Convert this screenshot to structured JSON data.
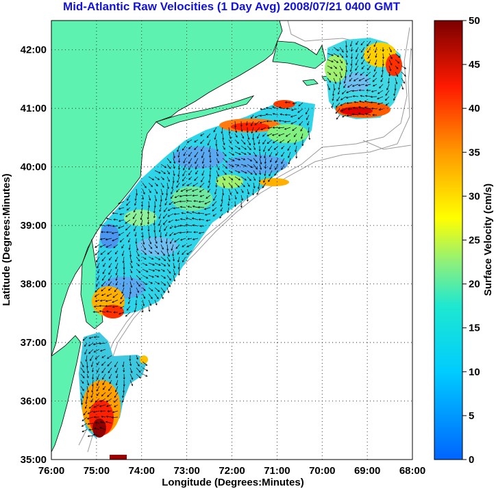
{
  "title": "Mid-Atlantic Raw Velocities (1 Day Avg) 2008/07/21 0400 GMT",
  "map": {
    "x_axis_label": "Longitude (Degrees:Minutes)",
    "y_axis_label": "Latitude (Degrees:Minutes)",
    "x_ticks": [
      "76:00",
      "75:00",
      "74:00",
      "73:00",
      "72:00",
      "71:00",
      "70:00",
      "69:00",
      "68:00"
    ],
    "y_ticks": [
      "42:00",
      "41:00",
      "40:00",
      "39:00",
      "38:00",
      "37:00",
      "36:00",
      "35:00"
    ],
    "lon_range": [
      -76,
      -68
    ],
    "lat_range": [
      35,
      42.5
    ],
    "land_color": "#5ef2b0",
    "ocean_color": "#ffffff",
    "grid": "dotted"
  },
  "colorbar": {
    "label": "Surface Velocity (cm/s)",
    "ticks": [
      "50",
      "45",
      "40",
      "35",
      "30",
      "25",
      "20",
      "15",
      "10",
      "5",
      "0"
    ],
    "range": [
      0,
      50
    ],
    "colormap": "jet"
  }
}
